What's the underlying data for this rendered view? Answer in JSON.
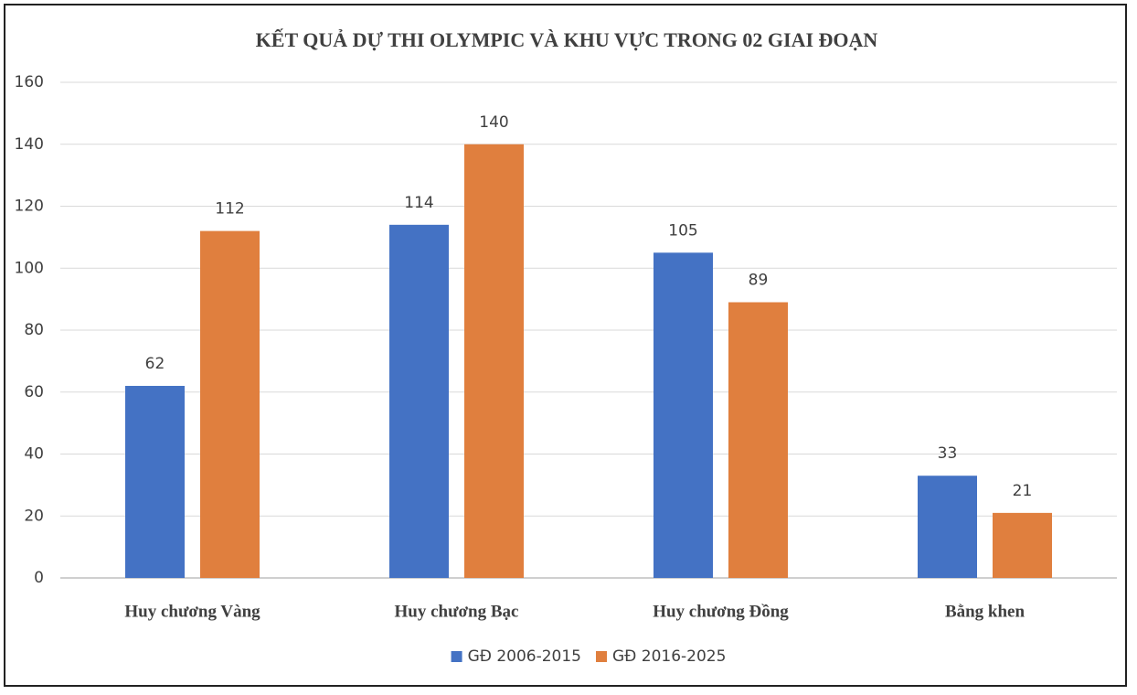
{
  "chart_data": {
    "type": "bar",
    "title": "KẾT QUẢ DỰ THI OLYMPIC VÀ KHU VỰC TRONG 02 GIAI ĐOẠN",
    "categories": [
      "Huy chương Vàng",
      "Huy chương Bạc",
      "Huy chương Đồng",
      "Bằng khen"
    ],
    "series": [
      {
        "name": "GĐ 2006-2015",
        "color": "#4472c4",
        "values": [
          62,
          114,
          105,
          33
        ]
      },
      {
        "name": "GĐ 2016-2025",
        "color": "#e07f3e",
        "values": [
          112,
          140,
          89,
          21
        ]
      }
    ],
    "ylim": [
      0,
      160
    ],
    "yticks": [
      0,
      20,
      40,
      60,
      80,
      100,
      120,
      140,
      160
    ],
    "grid": true,
    "legend": "bottom"
  }
}
